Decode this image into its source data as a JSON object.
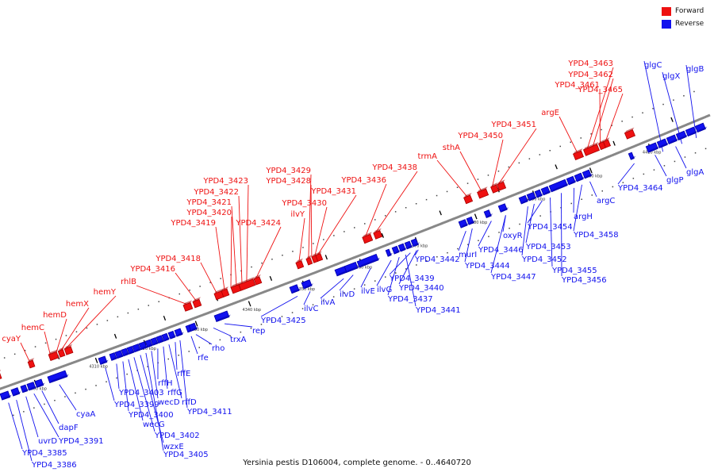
{
  "caption": "Yersinia pestis D106004, complete genome. - 0..4640720",
  "legend": {
    "forward_label": "Forward",
    "reverse_label": "Reverse",
    "forward_color": "#ee1111",
    "reverse_color": "#1111ee"
  },
  "colors": {
    "forward": "#ee1111",
    "forward_dark": "#aa0000",
    "reverse": "#1111ee",
    "reverse_dark": "#0000aa",
    "backbone": "#888888",
    "tick": "#000000"
  },
  "scale_labels": [
    "4300 kbp",
    "4310 kbp",
    "4320 kbp",
    "4330 kbp",
    "4340 kbp",
    "4350 kbp",
    "4360 kbp",
    "4370 kbp",
    "4380 kbp",
    "4390 kbp",
    "4400 kbp",
    "4410 kbp"
  ],
  "forward_labels": [
    "cyaY",
    "hemC",
    "hemD",
    "hemX",
    "hemY",
    "rhlB",
    "YPD4_3416",
    "YPD4_3418",
    "YPD4_3419",
    "YPD4_3420",
    "YPD4_3421",
    "YPD4_3422",
    "YPD4_3423",
    "YPD4_3424",
    "ilvY",
    "YPD4_3429",
    "YPD4_3428",
    "YPD4_3430",
    "YPD4_3431",
    "YPD4_3436",
    "YPD4_3438",
    "trmA",
    "sthA",
    "YPD4_3450",
    "YPD4_3451",
    "argE",
    "YPD4_3463",
    "YPD4_3462",
    "YPD4_3461",
    "YPD4_3465"
  ],
  "reverse_labels": [
    "YPD4_3385",
    "YPD4_3386",
    "uvrD",
    "YPD4_3391",
    "dapF",
    "cyaA",
    "YPD4_3399",
    "YPD4_3403",
    "YPD4_3400",
    "wecG",
    "YPD4_3402",
    "wzxE",
    "YPD4_3405",
    "wecD",
    "rffH",
    "rffG",
    "rffD",
    "rffE",
    "YPD4_3411",
    "rfe",
    "rho",
    "trxA",
    "rep",
    "YPD4_3425",
    "ilvC",
    "ilvA",
    "ilvD",
    "ilvE",
    "ilvG",
    "YPD4_3437",
    "YPD4_3441",
    "YPD4_3439",
    "YPD4_3440",
    "YPD4_3442",
    "murI",
    "YPD4_3444",
    "YPD4_3446",
    "YPD4_3447",
    "oxyR",
    "YPD4_3452",
    "YPD4_3453",
    "YPD4_3454",
    "YPD4_3455",
    "YPD4_3456",
    "argH",
    "YPD4_3458",
    "argC",
    "YPD4_3464",
    "glgP",
    "glgA",
    "glgC",
    "glgX",
    "glgB"
  ]
}
